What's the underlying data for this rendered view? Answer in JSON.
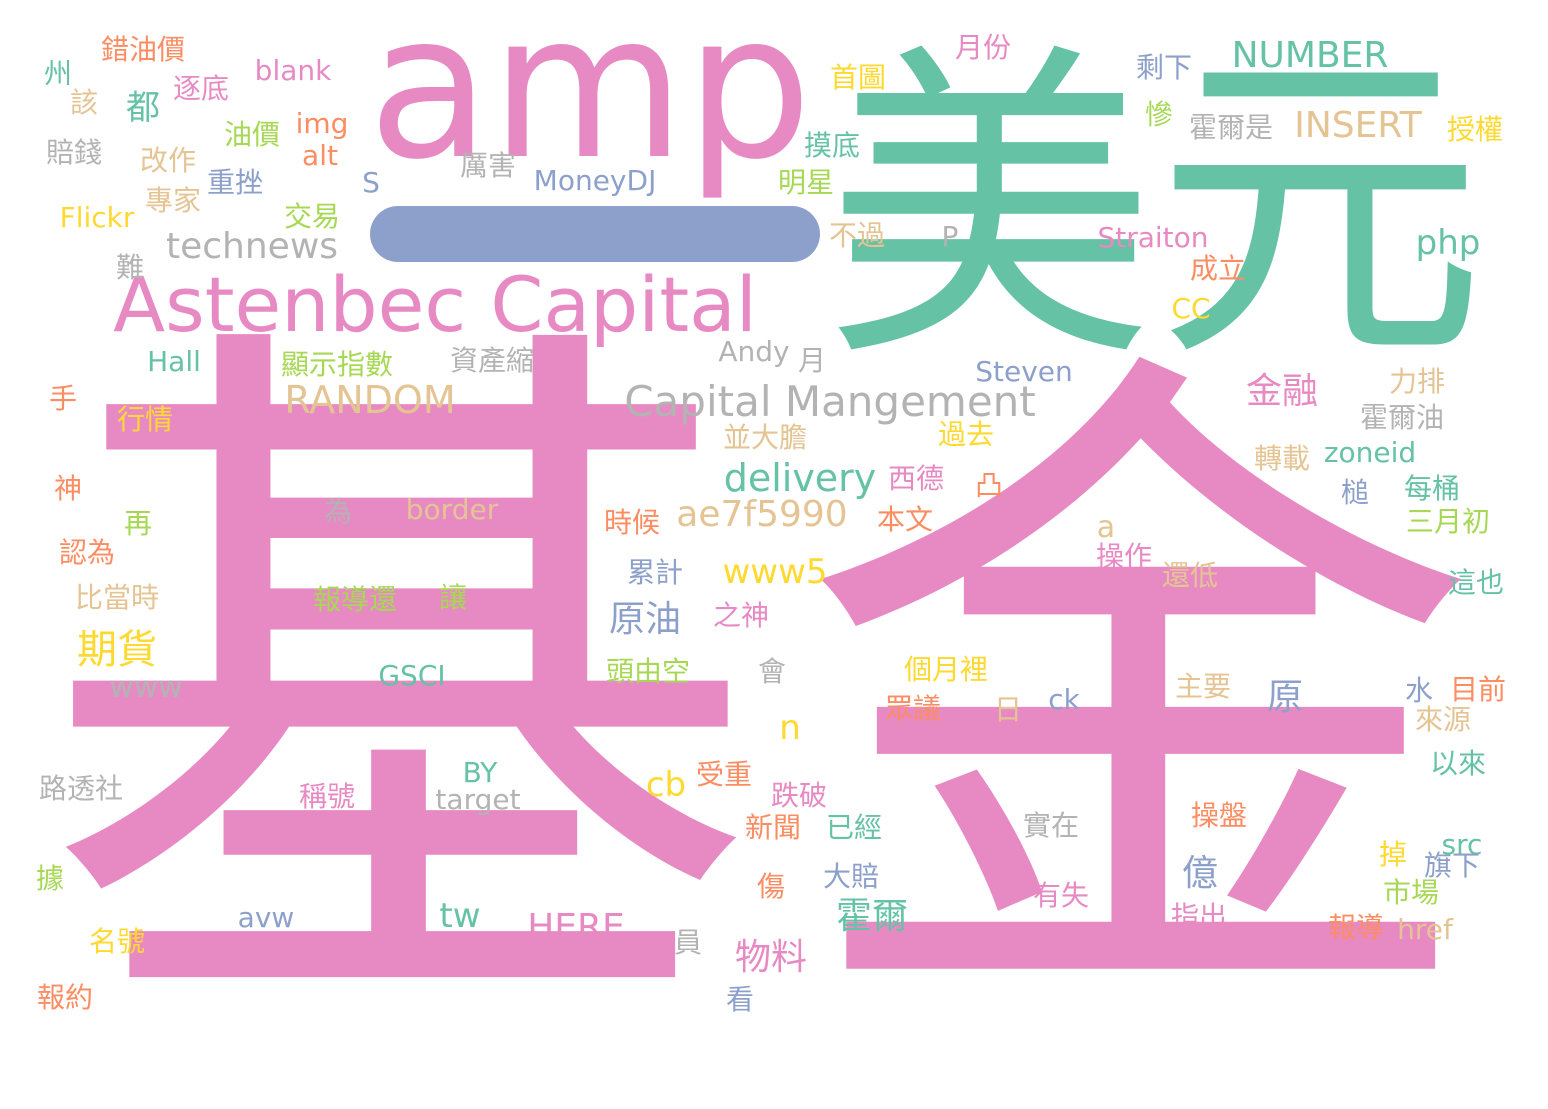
{
  "colors": {
    "pink": "#e78ac3",
    "green": "#66c2a5",
    "orange": "#fc8d62",
    "blue": "#8da0cb",
    "lime": "#a6d854",
    "yellow": "#ffd92f",
    "tan": "#e5c494",
    "gray": "#b3b3b3"
  },
  "words": {
    "ji": "基",
    "jin": "金",
    "mei": "美",
    "yuan": "元",
    "amp": "amp",
    "astenbec": "Astenbec Capital",
    "capital_mangement": "Capital Mangement",
    "technews": "technews",
    "random": "RANDOM",
    "number": "NUMBER",
    "insert": "INSERT",
    "delivery": "delivery",
    "ae7f": "ae7f5990",
    "www5": "www5",
    "php": "php",
    "qihuo": "期貨",
    "yuanyou": "原油",
    "jinrong": "金融",
    "www": "www",
    "yuan2": "原",
    "yi": "億",
    "huoer": "霍爾",
    "wuliao": "物料",
    "here": "HERE",
    "tw": "tw",
    "cb": "cb",
    "n": "n",
    "a": "a",
    "gsci": "GSCI",
    "by": "BY",
    "target": "target",
    "avw": "avw",
    "ck": "ck",
    "src": "src",
    "href": "href",
    "zoneid": "zoneid",
    "steven": "Steven",
    "straiton": "Straiton",
    "cc": "CC",
    "andy": "Andy",
    "hall": "Hall",
    "flickr": "Flickr",
    "moneydj": "MoneyDJ",
    "blank": "blank",
    "img": "img",
    "alt": "alt",
    "s": "S",
    "p": "P",
    "border": "border",
    "dou": "都",
    "cuoyoujia": "錯油價",
    "zhou": "州",
    "zhudi": "逐底",
    "gai": "該",
    "youjia": "油價",
    "peiqian": "賠錢",
    "gaizuo": "改作",
    "zhongcuo": "重挫",
    "zhuanjia": "專家",
    "jiaoyi": "交易",
    "nan": "難",
    "lihai": "厲害",
    "yuefen": "月份",
    "shouye": "首圖",
    "moodi": "摸底",
    "mingxing": "明星",
    "buguo": "不過",
    "shengxia": "剩下",
    "can": "慘",
    "huoershi": "霍爾是",
    "shouquan": "授權",
    "chengli": "成立",
    "xianshi": "顯示指數",
    "zichansuo": "資產縮",
    "yue": "月",
    "shou": "手",
    "hangqing": "行情",
    "shen": "神",
    "zai": "再",
    "renwei": "認為",
    "bidangshi": "比當時",
    "wei": "為",
    "bingdadan": "並大膽",
    "guoqu": "過去",
    "xide": "西德",
    "tu": "凸",
    "shihou": "時候",
    "benwen": "本文",
    "liaiji": "力排",
    "huoeryou": "霍爾油",
    "zhuanzai": "轉載",
    "chui": "槌",
    "meitong": "每桶",
    "sanyuechu": "三月初",
    "caozuo": "操作",
    "haidi": "還低",
    "leiji": "累計",
    "zhishen": "之神",
    "baodaohuan": "報導還",
    "rang": "讓",
    "zheye": "這也",
    "toukong": "頭由空",
    "hui": "會",
    "gueli": "個月裡",
    "zhuyao": "主要",
    "shui": "水",
    "mumuqian": "目前",
    "zhongyi": "眾議",
    "ri": "日",
    "laiyuan": "來源",
    "yilai": "以來",
    "lutou": "路透社",
    "chenghao": "稱號",
    "shouzhong": "受重",
    "diepo": "跌破",
    "xinwen": "新聞",
    "yijing": "已經",
    "shizai": "實在",
    "caopan": "操盤",
    "diao": "掉",
    "qixia": "旗下",
    "ju": "據",
    "shang": "傷",
    "dapei": "大賠",
    "youshi": "有失",
    "zhichu": "指出",
    "shichang": "市場",
    "mingyao": "名號",
    "baoyue": "報約",
    "yuan3": "員",
    "kan": "看",
    "baodao": "報導"
  }
}
